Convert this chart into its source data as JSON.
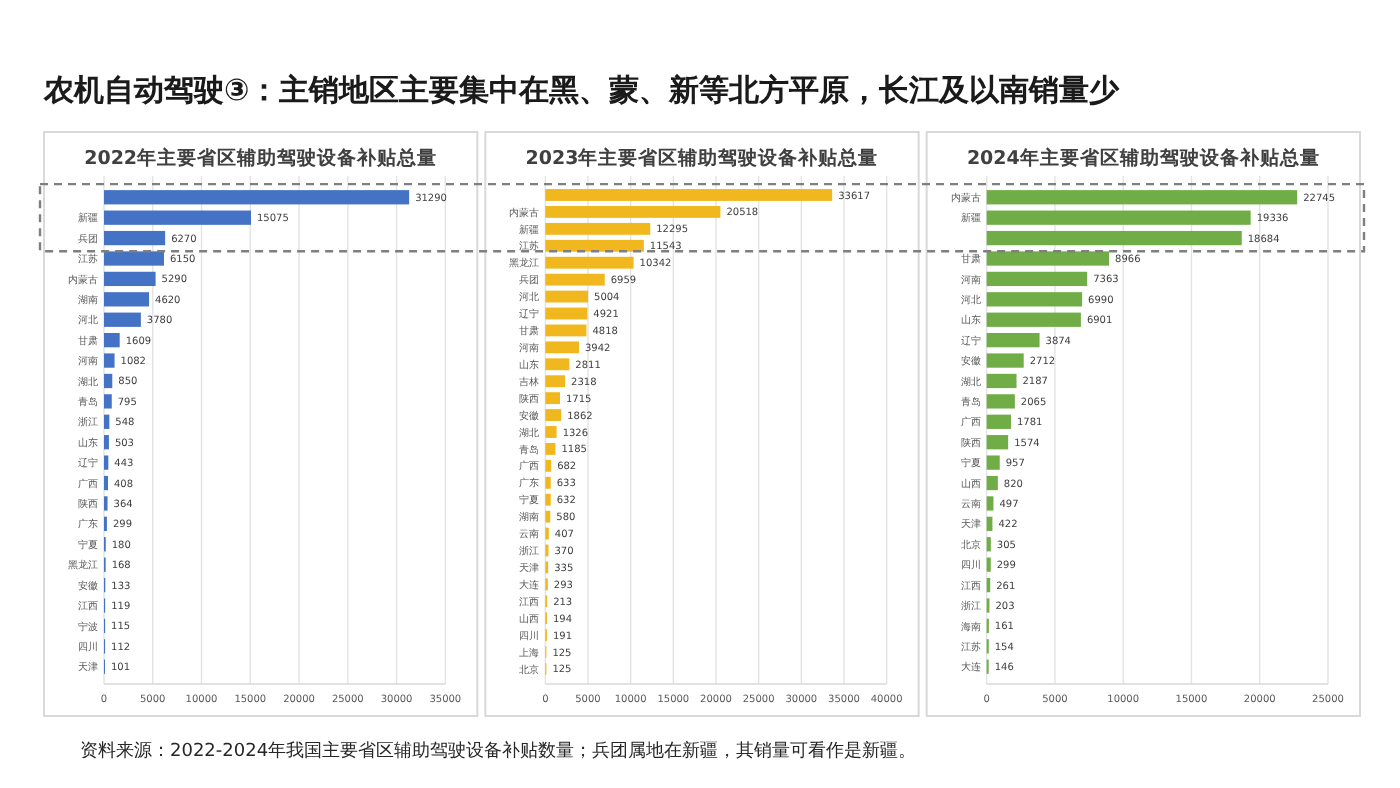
{
  "chart_data": [
    {
      "type": "bar",
      "orientation": "horizontal",
      "title": "2022年主要省区辅助驾驶设备补贴总量",
      "annotations": [
        "农机自动驾驶③：主销地区主要集中在黑、蒙、新等北方平原，长江及以南销量少",
        "资料来源：2022-2024年我国主要省区辅助驾驶设备补贴数量；兵团属地在新疆，其销量可看作是新疆。"
      ],
      "categories": [
        null,
        "新疆",
        "兵团",
        "江苏",
        "内蒙古",
        "湖南",
        "河北",
        "甘肃",
        "河南",
        "湖北",
        "青岛",
        "浙江",
        "山东",
        "辽宁",
        "广西",
        "陕西",
        "广东",
        "宁夏",
        "黑龙江",
        "安徽",
        "江西",
        "宁波",
        "四川",
        "天津"
      ],
      "values": [
        31290,
        15075,
        6270,
        6150,
        5290,
        4620,
        3780,
        1609,
        1082,
        850,
        795,
        548,
        503,
        443,
        408,
        364,
        299,
        180,
        168,
        133,
        119,
        115,
        112,
        101
      ],
      "color": "#4472c4",
      "xlim": [
        0,
        35000
      ],
      "xticks": [
        0,
        5000,
        10000,
        15000,
        20000,
        25000,
        30000,
        35000
      ],
      "grid": "x",
      "data_labels": true
    },
    {
      "type": "bar",
      "orientation": "horizontal",
      "title": "2023年主要省区辅助驾驶设备补贴总量",
      "categories": [
        null,
        "内蒙古",
        "新疆",
        "江苏",
        "黑龙江",
        "兵团",
        "河北",
        "辽宁",
        "甘肃",
        "河南",
        "山东",
        "吉林",
        "陕西",
        "安徽",
        "湖北",
        "青岛",
        "广西",
        "广东",
        "宁夏",
        "湖南",
        "云南",
        "浙江",
        "天津",
        "大连",
        "江西",
        "山西",
        "四川",
        "上海",
        "北京"
      ],
      "values": [
        33617,
        20518,
        12295,
        11543,
        10342,
        6959,
        5004,
        4921,
        4818,
        3942,
        2811,
        2318,
        1715,
        1862,
        1326,
        1185,
        682,
        633,
        632,
        580,
        407,
        370,
        335,
        293,
        213,
        194,
        191,
        125,
        125
      ],
      "color": "#f0b81e",
      "xlim": [
        0,
        40000
      ],
      "xticks": [
        0,
        5000,
        10000,
        15000,
        20000,
        25000,
        30000,
        35000,
        40000
      ],
      "grid": "x",
      "data_labels": true
    },
    {
      "type": "bar",
      "orientation": "horizontal",
      "title": "2024年主要省区辅助驾驶设备补贴总量",
      "categories": [
        "内蒙古",
        "新疆",
        null,
        "甘肃",
        "河南",
        "河北",
        "山东",
        "辽宁",
        "安徽",
        "湖北",
        "青岛",
        "广西",
        "陕西",
        "宁夏",
        "山西",
        "云南",
        "天津",
        "北京",
        "四川",
        "江西",
        "浙江",
        "海南",
        "江苏",
        "大连"
      ],
      "values": [
        22745,
        19336,
        18684,
        8966,
        7363,
        6990,
        6901,
        3874,
        2712,
        2187,
        2065,
        1781,
        1574,
        957,
        820,
        497,
        422,
        305,
        299,
        261,
        203,
        161,
        154,
        146
      ],
      "color": "#70ad47",
      "xlim": [
        0,
        25000
      ],
      "xticks": [
        0,
        5000,
        10000,
        15000,
        20000,
        25000
      ],
      "grid": "x",
      "data_labels": true
    }
  ]
}
